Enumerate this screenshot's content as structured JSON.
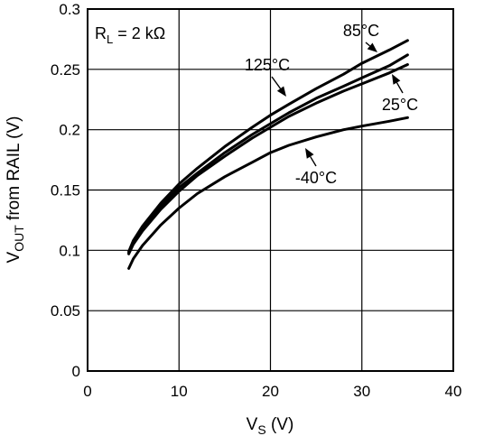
{
  "chart_data": {
    "type": "line",
    "xlabel": {
      "main": "V",
      "sub": "S",
      "unit": " (V)"
    },
    "ylabel": {
      "main": "V",
      "sub": "OUT",
      "rest": " from RAIL (V)"
    },
    "xlim": [
      0,
      40
    ],
    "ylim": [
      0,
      0.3
    ],
    "xticks": [
      "0",
      "10",
      "20",
      "30",
      "40"
    ],
    "yticks": [
      "0",
      "0.05",
      "0.1",
      "0.15",
      "0.2",
      "0.25",
      "0.3"
    ],
    "grid": true,
    "annotation": {
      "main": "R",
      "sub": "L",
      "rest": " = 2 kΩ"
    },
    "series": [
      {
        "name": "125°C",
        "x": [
          4.5,
          5,
          6,
          8,
          10,
          12,
          15,
          18,
          20,
          22,
          25,
          28,
          30,
          33,
          35
        ],
        "y": [
          0.099,
          0.108,
          0.12,
          0.139,
          0.155,
          0.168,
          0.186,
          0.202,
          0.212,
          0.221,
          0.234,
          0.246,
          0.255,
          0.266,
          0.274
        ]
      },
      {
        "name": "85°C",
        "x": [
          4.5,
          5,
          6,
          8,
          10,
          12,
          15,
          18,
          20,
          22,
          25,
          28,
          30,
          33,
          35
        ],
        "y": [
          0.098,
          0.107,
          0.118,
          0.136,
          0.152,
          0.164,
          0.181,
          0.196,
          0.205,
          0.214,
          0.226,
          0.236,
          0.243,
          0.253,
          0.262
        ]
      },
      {
        "name": "25°C",
        "x": [
          4.5,
          5,
          6,
          8,
          10,
          12,
          15,
          18,
          20,
          22,
          25,
          28,
          30,
          33,
          35
        ],
        "y": [
          0.097,
          0.105,
          0.116,
          0.134,
          0.149,
          0.162,
          0.178,
          0.193,
          0.202,
          0.211,
          0.222,
          0.232,
          0.238,
          0.247,
          0.254
        ]
      },
      {
        "name": "-40°C",
        "x": [
          4.5,
          5,
          6,
          8,
          10,
          12,
          15,
          18,
          20,
          22,
          25,
          28,
          30,
          33,
          35
        ],
        "y": [
          0.085,
          0.093,
          0.104,
          0.121,
          0.135,
          0.147,
          0.161,
          0.173,
          0.181,
          0.187,
          0.194,
          0.2,
          0.203,
          0.207,
          0.21
        ]
      }
    ]
  }
}
